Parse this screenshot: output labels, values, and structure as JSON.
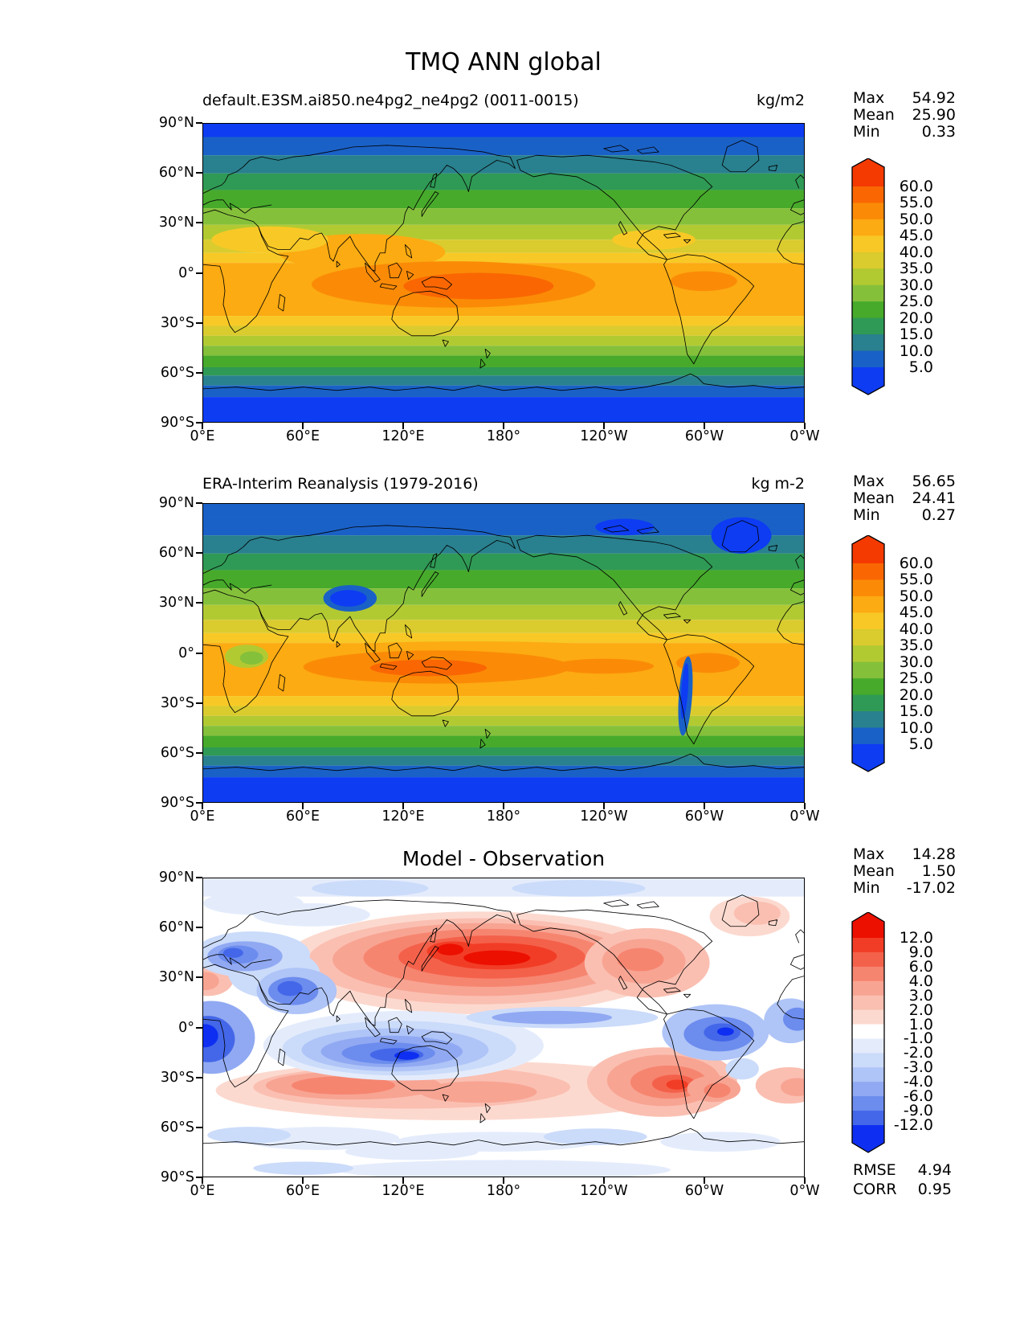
{
  "figure_title": "TMQ ANN global",
  "axis": {
    "x_ticks": [
      "0°E",
      "60°E",
      "120°E",
      "180°",
      "120°W",
      "60°W",
      "0°W"
    ],
    "y_ticks": [
      "90°N",
      "60°N",
      "30°N",
      "0°",
      "30°S",
      "60°S",
      "90°S"
    ]
  },
  "panels": [
    {
      "title": "default.E3SM.ai850.ne4pg2_ne4pg2 (0011-0015)",
      "units": "kg/m2",
      "stats": [
        {
          "label": "Max",
          "value": "54.92"
        },
        {
          "label": "Mean",
          "value": "25.90"
        },
        {
          "label": "Min",
          "value": "0.33"
        }
      ],
      "colorbar": {
        "tick_labels": [
          "60.0",
          "55.0",
          "50.0",
          "45.0",
          "40.0",
          "35.0",
          "30.0",
          "25.0",
          "20.0",
          "15.0",
          "10.0",
          "5.0"
        ],
        "palette": [
          "#f43a00",
          "#fa6702",
          "#fb8b07",
          "#fcab12",
          "#f8c926",
          "#dacb2e",
          "#b2ca32",
          "#85c03b",
          "#47aa2b",
          "#2f9a55",
          "#29808e",
          "#1a61c7",
          "#0d3cf3"
        ]
      }
    },
    {
      "title": "ERA-Interim Reanalysis (1979-2016)",
      "units": "kg m-2",
      "stats": [
        {
          "label": "Max",
          "value": "56.65"
        },
        {
          "label": "Mean",
          "value": "24.41"
        },
        {
          "label": "Min",
          "value": "0.27"
        }
      ],
      "colorbar": {
        "tick_labels": [
          "60.0",
          "55.0",
          "50.0",
          "45.0",
          "40.0",
          "35.0",
          "30.0",
          "25.0",
          "20.0",
          "15.0",
          "10.0",
          "5.0"
        ],
        "palette": [
          "#f43a00",
          "#fa6702",
          "#fb8b07",
          "#fcab12",
          "#f8c926",
          "#dacb2e",
          "#b2ca32",
          "#85c03b",
          "#47aa2b",
          "#2f9a55",
          "#29808e",
          "#1a61c7",
          "#0d3cf3"
        ]
      }
    },
    {
      "title": "Model - Observation",
      "units": "",
      "stats": [
        {
          "label": "Max",
          "value": "14.28"
        },
        {
          "label": "Mean",
          "value": "1.50"
        },
        {
          "label": "Min",
          "value": "-17.02"
        }
      ],
      "colorbar": {
        "tick_labels": [
          "12.0",
          "9.0",
          "6.0",
          "4.0",
          "3.0",
          "2.0",
          "1.0",
          "-1.0",
          "-2.0",
          "-3.0",
          "-4.0",
          "-6.0",
          "-9.0",
          "-12.0"
        ],
        "palette": [
          "#ec1000",
          "#f23d26",
          "#f4614a",
          "#f68570",
          "#f8a493",
          "#fabfb1",
          "#fcd9cf",
          "#ffffff",
          "#e4ecfc",
          "#cbdbfa",
          "#afc4f7",
          "#90a9f2",
          "#6c8cee",
          "#4467e9",
          "#0e2ff1"
        ]
      },
      "metrics": [
        {
          "label": "RMSE",
          "value": "4.94"
        },
        {
          "label": "CORR",
          "value": "0.95"
        }
      ]
    }
  ],
  "chart_data": [
    {
      "type": "heatmap",
      "subtype": "filled-contour world map, plate-carree 0E-360E, 90N-90S",
      "title": "default.E3SM.ai850.ne4pg2_ne4pg2 (0011-0015)",
      "variable": "TMQ",
      "season": "ANN",
      "region": "global",
      "units": "kg/m2",
      "levels": [
        5,
        10,
        15,
        20,
        25,
        30,
        35,
        40,
        45,
        50,
        55,
        60
      ],
      "stats": {
        "max": 54.92,
        "mean": 25.9,
        "min": 0.33
      },
      "x_ticks_deg_east": [
        0,
        60,
        120,
        180,
        240,
        300,
        360
      ],
      "y_ticks_deg": [
        90,
        60,
        30,
        0,
        -30,
        -60,
        -90
      ],
      "pattern": "zonal bands: under 5 kg/m2 at poles rising to 50-55 kg/m2 maximum over tropical west-central Pacific warm pool"
    },
    {
      "type": "heatmap",
      "subtype": "filled-contour world map, plate-carree 0E-360E, 90N-90S",
      "title": "ERA-Interim Reanalysis (1979-2016)",
      "variable": "TMQ",
      "season": "ANN",
      "region": "global",
      "units": "kg m-2",
      "levels": [
        5,
        10,
        15,
        20,
        25,
        30,
        35,
        40,
        45,
        50,
        55,
        60
      ],
      "stats": {
        "max": 56.65,
        "mean": 24.41,
        "min": 0.27
      },
      "x_ticks_deg_east": [
        0,
        60,
        120,
        180,
        240,
        300,
        360
      ],
      "y_ticks_deg": [
        90,
        60,
        30,
        0,
        -30,
        -60,
        -90
      ],
      "pattern": "same zonal structure with finer detail: dry (blue) Tibetan Plateau, Greenland and Andes; 55+ kg m-2 maximum near Maritime Continent; orange band along equator incl. Amazon"
    },
    {
      "type": "heatmap",
      "subtype": "filled-contour difference map (model minus observation)",
      "title": "Model - Observation",
      "variable": "TMQ difference",
      "levels": [
        -12,
        -9,
        -6,
        -4,
        -3,
        -2,
        -1,
        1,
        2,
        3,
        4,
        6,
        9,
        12
      ],
      "stats": {
        "max": 14.28,
        "mean": 1.5,
        "min": -17.02
      },
      "rmse": 4.94,
      "corr": 0.95,
      "x_ticks_deg_east": [
        0,
        60,
        120,
        180,
        240,
        300,
        360
      ],
      "y_ticks_deg": [
        90,
        60,
        30,
        0,
        -30,
        -60,
        -90
      ],
      "pattern": "wet bias (red, up to +12) over North Pacific mid-latitudes into North America and over southern-hemisphere subtropics; dry bias (blue, to -12) over Maritime Continent / equatorial Indian Ocean, equatorial Atlantic, Europe and Middle East; weak biases near poles"
    }
  ]
}
